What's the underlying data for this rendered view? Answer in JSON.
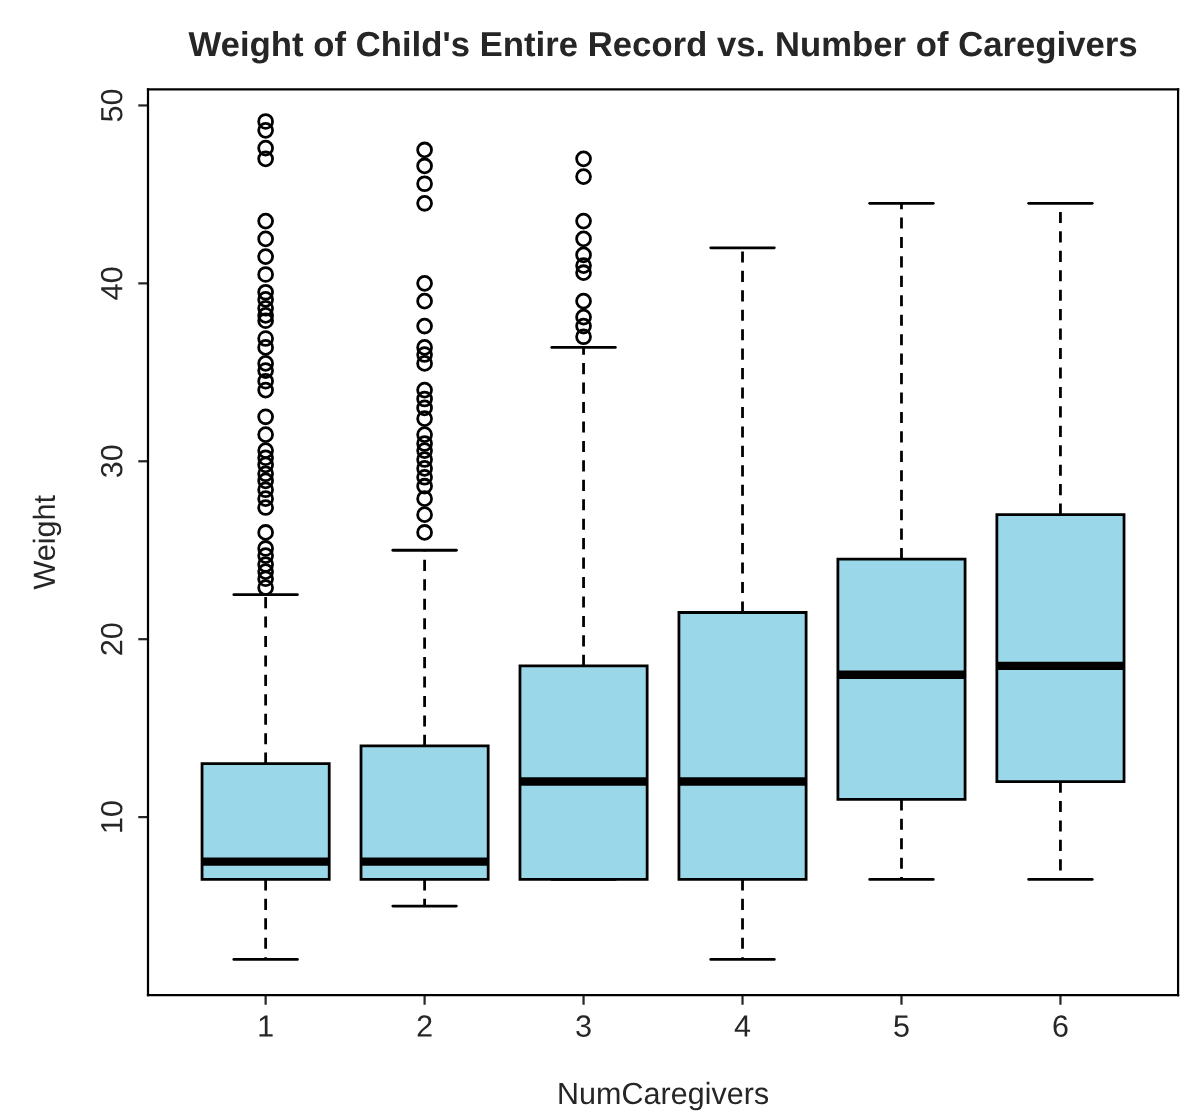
{
  "chart_data": {
    "type": "box",
    "title": "Weight of Child's Entire Record vs. Number of Caregivers",
    "xlabel": "NumCaregivers",
    "ylabel": "Weight",
    "categories": [
      "1",
      "2",
      "3",
      "4",
      "5",
      "6"
    ],
    "series": [
      {
        "color": "#9ad8e9",
        "boxes": [
          {
            "low": 2,
            "q1": 6.5,
            "median": 7.5,
            "q3": 13,
            "high": 22.5,
            "outliers": [
              49.1,
              48.6,
              47.6,
              47.0,
              43.5,
              42.5,
              41.5,
              40.5,
              39.5,
              39.1,
              38.6,
              38.2,
              37.9,
              36.9,
              36.4,
              35.5,
              35.1,
              34.5,
              34.0,
              32.5,
              31.5,
              30.6,
              30.2,
              29.8,
              29.3,
              28.9,
              28.4,
              27.9,
              27.4,
              26.0,
              25.1,
              24.7,
              24.2,
              23.8,
              23.4,
              22.9
            ]
          },
          {
            "low": 5,
            "q1": 6.5,
            "median": 7.5,
            "q3": 14,
            "high": 25,
            "outliers": [
              47.5,
              46.6,
              45.6,
              44.5,
              40.0,
              39.0,
              37.6,
              36.4,
              36.0,
              35.5,
              34.0,
              33.5,
              33.0,
              32.4,
              31.5,
              31.0,
              30.6,
              30.1,
              29.6,
              29.1,
              28.6,
              27.9,
              27.0,
              26.0
            ]
          },
          {
            "low": 6.5,
            "q1": 6.5,
            "median": 12,
            "q3": 18.5,
            "high": 36.4,
            "outliers": [
              47.0,
              46.0,
              43.5,
              42.5,
              41.6,
              41.0,
              40.6,
              39.0,
              38.1,
              37.6,
              37.0
            ]
          },
          {
            "low": 2,
            "q1": 6.5,
            "median": 12,
            "q3": 21.5,
            "high": 42
          },
          {
            "low": 6.5,
            "q1": 11,
            "median": 18,
            "q3": 24.5,
            "high": 44.5
          },
          {
            "low": 6.5,
            "q1": 12,
            "median": 18.5,
            "q3": 27,
            "high": 44.5
          }
        ]
      }
    ],
    "ylim": [
      0,
      50.9
    ],
    "yticks": [
      10,
      20,
      30,
      40,
      50
    ],
    "grid": false,
    "legend": false
  }
}
